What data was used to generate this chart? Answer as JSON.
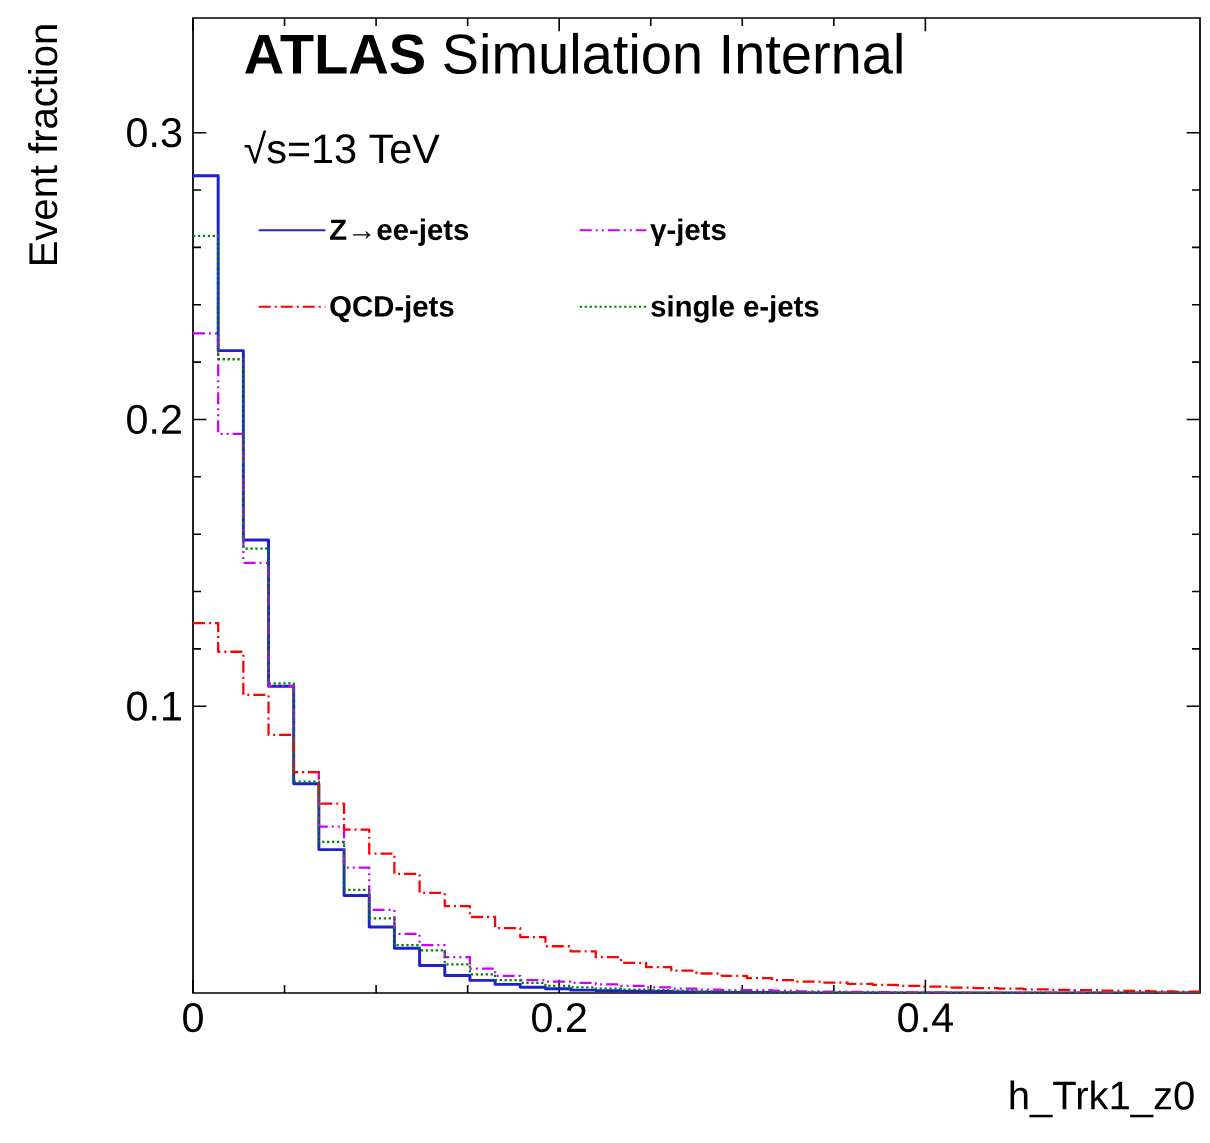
{
  "chart_data": {
    "type": "histogram",
    "xlabel": "h_Trk1_z0",
    "ylabel": "Event fraction",
    "annotations": [
      "**ATLAS** Simulation Internal",
      "√s=13 TeV"
    ],
    "bins": [
      0,
      0.01375,
      0.0275,
      0.04125,
      0.055,
      0.06875,
      0.0825,
      0.09625,
      0.11,
      0.12375,
      0.1375,
      0.15125,
      0.165,
      0.17875,
      0.1925,
      0.20625,
      0.22,
      0.23375,
      0.2475,
      0.26125,
      0.275,
      0.28875,
      0.3025,
      0.31625,
      0.33,
      0.34375,
      0.3575,
      0.37125,
      0.385,
      0.39875,
      0.4125,
      0.42625,
      0.44,
      0.45375,
      0.4675,
      0.48125,
      0.495,
      0.50875,
      0.5225,
      0.53625,
      0.55
    ],
    "series": [
      {
        "name": "Z→ee-jets",
        "color": "#1f1fd6",
        "line_style": "solid",
        "values": [
          0.285,
          0.224,
          0.158,
          0.107,
          0.073,
          0.05,
          0.034,
          0.023,
          0.0156,
          0.0096,
          0.0061,
          0.0044,
          0.003,
          0.002,
          0.0015,
          0.001,
          0.0008,
          0.0006,
          0.0005,
          0.0004,
          0.0003,
          0.0002,
          0.0002,
          0.0001,
          0,
          0,
          0,
          0,
          0,
          0,
          0,
          0,
          0,
          0,
          0,
          0,
          0,
          0,
          0,
          0
        ]
      },
      {
        "name": "γ-jets",
        "color": "#cc00ff",
        "line_style": "dashdotdot",
        "values": [
          0.23,
          0.195,
          0.15,
          0.107,
          0.077,
          0.058,
          0.0437,
          0.029,
          0.0206,
          0.0167,
          0.0125,
          0.0085,
          0.006,
          0.0045,
          0.004,
          0.0035,
          0.003,
          0.0025,
          0.002,
          0.0015,
          0.0012,
          0.001,
          0.001,
          0.0008,
          0.0006,
          0.0005,
          0.0004,
          0.0003,
          0.0002,
          0.0002,
          0,
          0,
          0,
          0,
          0,
          0,
          0,
          0,
          0,
          0
        ]
      },
      {
        "name": "QCD-jets",
        "color": "#ff0000",
        "line_style": "dashdot",
        "values": [
          0.129,
          0.119,
          0.104,
          0.09,
          0.077,
          0.066,
          0.057,
          0.0486,
          0.0415,
          0.0349,
          0.0303,
          0.0265,
          0.0226,
          0.0195,
          0.0163,
          0.0145,
          0.0125,
          0.0105,
          0.009,
          0.0078,
          0.0068,
          0.006,
          0.0052,
          0.0045,
          0.004,
          0.0036,
          0.0032,
          0.0028,
          0.0025,
          0.0022,
          0.0019,
          0.0017,
          0.0015,
          0.0013,
          0.0011,
          0.001,
          0.0008,
          0.0007,
          0.0006,
          0.0005
        ]
      },
      {
        "name": "single e-jets",
        "color": "#008000",
        "line_style": "dotted",
        "values": [
          0.264,
          0.221,
          0.155,
          0.108,
          0.0737,
          0.0527,
          0.036,
          0.026,
          0.0167,
          0.0149,
          0.01,
          0.0065,
          0.0045,
          0.0035,
          0.0025,
          0.002,
          0.0015,
          0.0012,
          0.001,
          0.0008,
          0.0006,
          0.0005,
          0.0004,
          0.0003,
          0.0002,
          0.0002,
          0.0001,
          0,
          0,
          0,
          0,
          0,
          0,
          0,
          0,
          0,
          0,
          0,
          0,
          0
        ]
      }
    ],
    "xlim": [
      0,
      0.55
    ],
    "ylim": [
      0,
      0.34
    ],
    "xticks": [
      0,
      0.2,
      0.4
    ],
    "yticks": [
      0.1,
      0.2,
      0.3
    ],
    "legend": "top",
    "grid": false
  }
}
